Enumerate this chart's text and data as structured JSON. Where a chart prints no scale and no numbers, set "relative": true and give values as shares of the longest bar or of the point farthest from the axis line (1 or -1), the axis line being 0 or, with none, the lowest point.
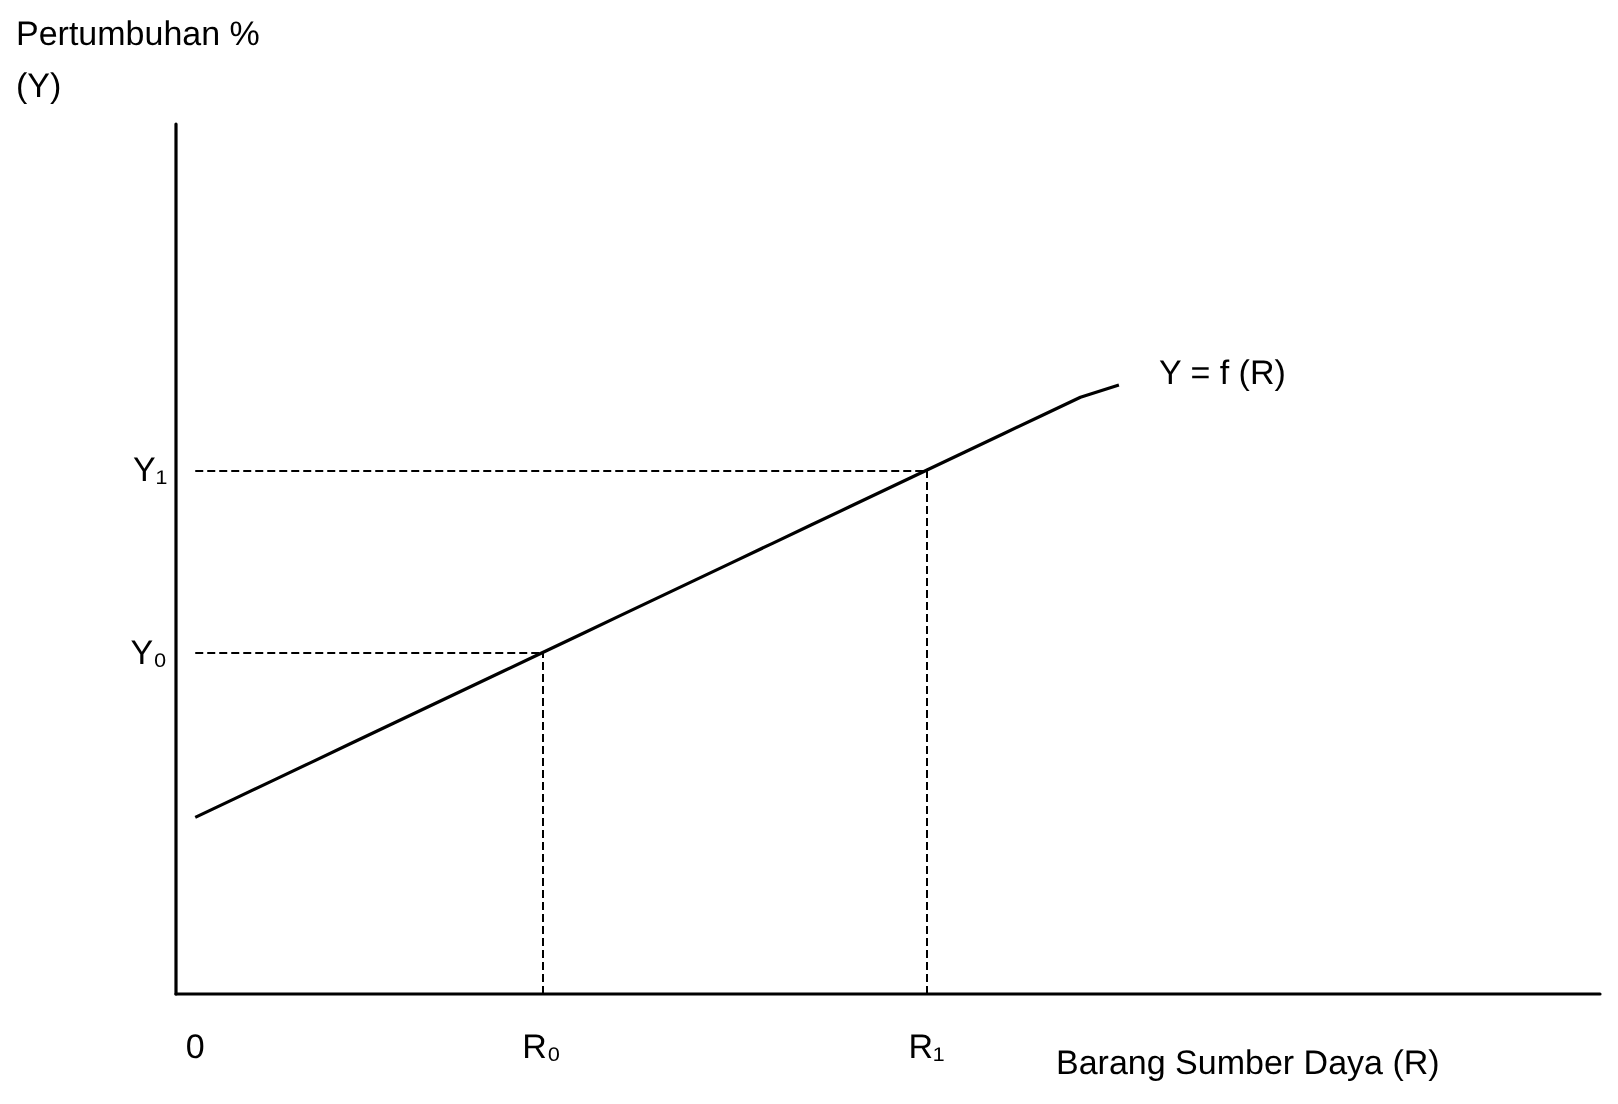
{
  "chart_data": {
    "type": "line",
    "relative": true,
    "xlabel": "Barang Sumber Daya (R)",
    "annotations": [
      "Pertumbuhan %\n(Y)"
    ],
    "categories": [
      "0",
      null,
      null,
      null,
      null,
      null,
      null,
      null,
      null,
      "R₀",
      null,
      null,
      null,
      null,
      null,
      null,
      null,
      null,
      null,
      "R₁",
      null,
      null,
      null,
      null,
      null,
      null,
      null,
      null,
      null,
      null,
      null,
      null,
      null,
      null,
      null,
      null,
      null
    ],
    "series": [
      {
        "name": "Y = f (R)",
        "color": "#000000",
        "values": [
          0.29,
          0.32,
          0.35,
          0.38,
          0.41,
          0.44,
          0.47,
          0.5,
          0.53,
          0.56,
          0.59,
          0.62,
          0.65,
          0.68,
          0.71,
          0.74,
          0.77,
          0.8,
          0.83,
          0.86,
          0.89,
          0.92,
          0.95,
          0.98,
          1,
          null,
          null,
          null,
          null,
          null,
          null,
          null,
          null,
          null,
          null,
          null,
          null
        ]
      }
    ],
    "ref_lines": [
      {
        "axis": "y",
        "value": 0.56,
        "label": "Y₀",
        "line_style": "dashed"
      },
      {
        "axis": "y",
        "value": 0.86,
        "label": "Y₁",
        "line_style": "dashed"
      },
      {
        "axis": "x",
        "value": "R₀",
        "line_style": "dashed"
      },
      {
        "axis": "x",
        "value": "R₁",
        "line_style": "dashed"
      }
    ],
    "grid": false,
    "legend": false,
    "marker": "none",
    "line_style": "solid"
  }
}
